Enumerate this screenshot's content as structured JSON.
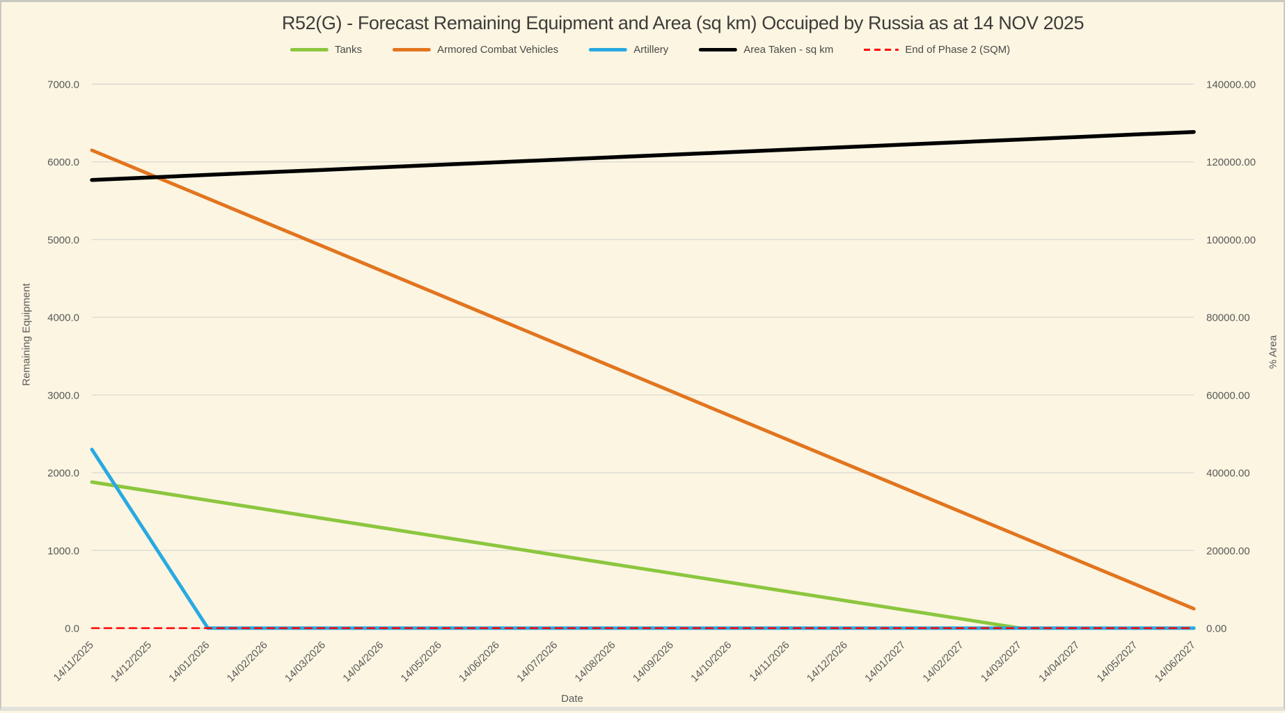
{
  "colors": {
    "background": "#FBF5E2",
    "gridline": "#DCDAD2",
    "tick_text": "#595957",
    "title_text": "#3E3C39"
  },
  "chart_data": {
    "type": "line",
    "title": "R52(G) - Forecast Remaining Equipment and Area (sq km) Occuiped by Russia as at 14 NOV 2025",
    "xlabel": "Date",
    "ylabel_left": "Remaining Equipment",
    "ylabel_right": "% Area",
    "legend_position": "top",
    "grid": true,
    "x_categories": [
      "14/11/2025",
      "14/12/2025",
      "14/01/2026",
      "14/02/2026",
      "14/03/2026",
      "14/04/2026",
      "14/05/2026",
      "14/06/2026",
      "14/07/2026",
      "14/08/2026",
      "14/09/2026",
      "14/10/2026",
      "14/11/2026",
      "14/12/2026",
      "14/01/2027",
      "14/02/2027",
      "14/03/2027",
      "14/04/2027",
      "14/05/2027",
      "14/06/2027"
    ],
    "left_axis": {
      "min": 0,
      "max": 7000,
      "step": 1000,
      "tick_labels": [
        "7000.0",
        "6000.0",
        "5000.0",
        "4000.0",
        "3000.0",
        "2000.0",
        "1000.0",
        "0.0"
      ]
    },
    "right_axis": {
      "min": 0,
      "max": 140000,
      "step": 20000,
      "tick_labels": [
        "140000.00",
        "120000.00",
        "100000.00",
        "80000.00",
        "60000.00",
        "40000.00",
        "20000.00",
        "0.00"
      ]
    },
    "series": [
      {
        "name": "Tanks",
        "color": "#8CC63E",
        "axis": "left",
        "style": "solid",
        "values": [
          1880,
          1763,
          1645,
          1528,
          1410,
          1293,
          1175,
          1058,
          940,
          823,
          705,
          588,
          470,
          353,
          235,
          118,
          0,
          0,
          0,
          0
        ]
      },
      {
        "name": "Armored Combat Vehicles",
        "color": "#E2751F",
        "axis": "left",
        "style": "solid",
        "values": [
          6150,
          5839,
          5529,
          5218,
          4908,
          4597,
          4287,
          3976,
          3666,
          3355,
          3045,
          2734,
          2424,
          2113,
          1803,
          1492,
          1182,
          871,
          561,
          250
        ]
      },
      {
        "name": "Artillery",
        "color": "#29A9E1",
        "axis": "left",
        "style": "solid",
        "values": [
          2300,
          1150,
          0,
          0,
          0,
          0,
          0,
          0,
          0,
          0,
          0,
          0,
          0,
          0,
          0,
          0,
          0,
          0,
          0,
          0
        ]
      },
      {
        "name": "Area Taken - sq km",
        "color": "#000000",
        "axis": "right",
        "style": "solid",
        "values": [
          115350,
          116000,
          116650,
          117300,
          117950,
          118600,
          119250,
          119900,
          120550,
          121200,
          121850,
          122500,
          123150,
          123800,
          124450,
          125100,
          125750,
          126400,
          127050,
          127700
        ]
      },
      {
        "name": "End of Phase 2 (SQM)",
        "color": "#FF0000",
        "axis": "right",
        "style": "dashed",
        "values": [
          0,
          0,
          0,
          0,
          0,
          0,
          0,
          0,
          0,
          0,
          0,
          0,
          0,
          0,
          0,
          0,
          0,
          0,
          0,
          0
        ]
      }
    ]
  }
}
